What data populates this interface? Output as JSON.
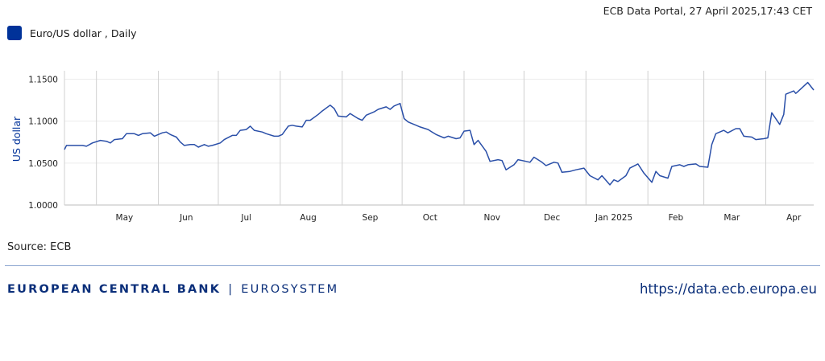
{
  "header": {
    "meta": "ECB Data Portal, 27 April 2025,17:43 CET"
  },
  "legend": {
    "label": "Euro/US dollar , Daily",
    "color": "#003299"
  },
  "source": "Source: ECB",
  "footer": {
    "brand_main": "EUROPEAN CENTRAL BANK",
    "brand_separator": "|",
    "brand_sub": "EUROSYSTEM",
    "url": "https://data.ecb.europa.eu"
  },
  "chart_data": {
    "type": "line",
    "title": "",
    "xlabel": "",
    "ylabel": "US dollar",
    "x_range": [
      "2024-04-15",
      "2025-04-25"
    ],
    "ylim": [
      1.0,
      1.16
    ],
    "yticks": [
      1.0,
      1.05,
      1.1,
      1.15
    ],
    "ytick_labels": [
      "1.0000",
      "1.0500",
      "1.1000",
      "1.1500"
    ],
    "xtick_labels": [
      "May",
      "Jun",
      "Jul",
      "Aug",
      "Sep",
      "Oct",
      "Nov",
      "Dec",
      "Jan 2025",
      "Feb",
      "Mar",
      "Apr"
    ],
    "xtick_dates": [
      "2024-05-15",
      "2024-06-15",
      "2024-07-15",
      "2024-08-15",
      "2024-09-15",
      "2024-10-15",
      "2024-11-15",
      "2024-12-15",
      "2025-01-15",
      "2025-02-15",
      "2025-03-15",
      "2025-04-15"
    ],
    "grid_dates": [
      "2024-04-15",
      "2024-05-01",
      "2024-06-01",
      "2024-07-01",
      "2024-08-01",
      "2024-09-01",
      "2024-10-01",
      "2024-11-01",
      "2024-12-01",
      "2025-01-01",
      "2025-02-01",
      "2025-03-01",
      "2025-04-01"
    ],
    "grid": true,
    "series": [
      {
        "name": "Euro/US dollar , Daily",
        "color": "#2a4fa8",
        "points": [
          [
            "2024-04-15",
            1.066
          ],
          [
            "2024-04-16",
            1.071
          ],
          [
            "2024-04-19",
            1.071
          ],
          [
            "2024-04-22",
            1.071
          ],
          [
            "2024-04-24",
            1.071
          ],
          [
            "2024-04-26",
            1.07
          ],
          [
            "2024-04-29",
            1.074
          ],
          [
            "2024-05-03",
            1.077
          ],
          [
            "2024-05-06",
            1.076
          ],
          [
            "2024-05-08",
            1.074
          ],
          [
            "2024-05-10",
            1.078
          ],
          [
            "2024-05-14",
            1.079
          ],
          [
            "2024-05-16",
            1.085
          ],
          [
            "2024-05-20",
            1.085
          ],
          [
            "2024-05-22",
            1.083
          ],
          [
            "2024-05-24",
            1.085
          ],
          [
            "2024-05-28",
            1.086
          ],
          [
            "2024-05-30",
            1.082
          ],
          [
            "2024-06-03",
            1.086
          ],
          [
            "2024-06-05",
            1.087
          ],
          [
            "2024-06-07",
            1.084
          ],
          [
            "2024-06-10",
            1.081
          ],
          [
            "2024-06-12",
            1.075
          ],
          [
            "2024-06-14",
            1.071
          ],
          [
            "2024-06-17",
            1.072
          ],
          [
            "2024-06-19",
            1.072
          ],
          [
            "2024-06-21",
            1.069
          ],
          [
            "2024-06-24",
            1.072
          ],
          [
            "2024-06-26",
            1.07
          ],
          [
            "2024-06-28",
            1.071
          ],
          [
            "2024-07-02",
            1.074
          ],
          [
            "2024-07-04",
            1.078
          ],
          [
            "2024-07-08",
            1.083
          ],
          [
            "2024-07-10",
            1.083
          ],
          [
            "2024-07-12",
            1.089
          ],
          [
            "2024-07-15",
            1.09
          ],
          [
            "2024-07-17",
            1.094
          ],
          [
            "2024-07-19",
            1.089
          ],
          [
            "2024-07-23",
            1.087
          ],
          [
            "2024-07-25",
            1.085
          ],
          [
            "2024-07-29",
            1.082
          ],
          [
            "2024-07-31",
            1.082
          ],
          [
            "2024-08-02",
            1.084
          ],
          [
            "2024-08-05",
            1.094
          ],
          [
            "2024-08-07",
            1.095
          ],
          [
            "2024-08-09",
            1.094
          ],
          [
            "2024-08-12",
            1.093
          ],
          [
            "2024-08-14",
            1.101
          ],
          [
            "2024-08-16",
            1.101
          ],
          [
            "2024-08-20",
            1.108
          ],
          [
            "2024-08-22",
            1.112
          ],
          [
            "2024-08-26",
            1.119
          ],
          [
            "2024-08-28",
            1.115
          ],
          [
            "2024-08-30",
            1.106
          ],
          [
            "2024-09-03",
            1.105
          ],
          [
            "2024-09-05",
            1.109
          ],
          [
            "2024-09-09",
            1.103
          ],
          [
            "2024-09-11",
            1.101
          ],
          [
            "2024-09-13",
            1.107
          ],
          [
            "2024-09-17",
            1.111
          ],
          [
            "2024-09-19",
            1.114
          ],
          [
            "2024-09-23",
            1.117
          ],
          [
            "2024-09-25",
            1.114
          ],
          [
            "2024-09-27",
            1.118
          ],
          [
            "2024-09-30",
            1.121
          ],
          [
            "2024-10-02",
            1.103
          ],
          [
            "2024-10-04",
            1.099
          ],
          [
            "2024-10-08",
            1.095
          ],
          [
            "2024-10-10",
            1.093
          ],
          [
            "2024-10-14",
            1.09
          ],
          [
            "2024-10-16",
            1.087
          ],
          [
            "2024-10-18",
            1.084
          ],
          [
            "2024-10-22",
            1.08
          ],
          [
            "2024-10-24",
            1.082
          ],
          [
            "2024-10-28",
            1.079
          ],
          [
            "2024-10-30",
            1.08
          ],
          [
            "2024-11-01",
            1.088
          ],
          [
            "2024-11-04",
            1.089
          ],
          [
            "2024-11-06",
            1.072
          ],
          [
            "2024-11-08",
            1.077
          ],
          [
            "2024-11-12",
            1.064
          ],
          [
            "2024-11-14",
            1.052
          ],
          [
            "2024-11-18",
            1.054
          ],
          [
            "2024-11-20",
            1.053
          ],
          [
            "2024-11-22",
            1.042
          ],
          [
            "2024-11-26",
            1.048
          ],
          [
            "2024-11-28",
            1.054
          ],
          [
            "2024-12-02",
            1.052
          ],
          [
            "2024-12-04",
            1.051
          ],
          [
            "2024-12-06",
            1.057
          ],
          [
            "2024-12-10",
            1.051
          ],
          [
            "2024-12-12",
            1.047
          ],
          [
            "2024-12-16",
            1.051
          ],
          [
            "2024-12-18",
            1.05
          ],
          [
            "2024-12-20",
            1.039
          ],
          [
            "2024-12-24",
            1.04
          ],
          [
            "2024-12-27",
            1.042
          ],
          [
            "2024-12-31",
            1.044
          ],
          [
            "2025-01-03",
            1.035
          ],
          [
            "2025-01-07",
            1.03
          ],
          [
            "2025-01-09",
            1.035
          ],
          [
            "2025-01-13",
            1.024
          ],
          [
            "2025-01-15",
            1.03
          ],
          [
            "2025-01-17",
            1.028
          ],
          [
            "2025-01-21",
            1.035
          ],
          [
            "2025-01-23",
            1.044
          ],
          [
            "2025-01-27",
            1.049
          ],
          [
            "2025-01-30",
            1.038
          ],
          [
            "2025-02-03",
            1.027
          ],
          [
            "2025-02-05",
            1.04
          ],
          [
            "2025-02-07",
            1.035
          ],
          [
            "2025-02-11",
            1.032
          ],
          [
            "2025-02-13",
            1.046
          ],
          [
            "2025-02-17",
            1.048
          ],
          [
            "2025-02-19",
            1.046
          ],
          [
            "2025-02-21",
            1.048
          ],
          [
            "2025-02-25",
            1.049
          ],
          [
            "2025-02-27",
            1.046
          ],
          [
            "2025-03-03",
            1.045
          ],
          [
            "2025-03-05",
            1.072
          ],
          [
            "2025-03-07",
            1.085
          ],
          [
            "2025-03-11",
            1.089
          ],
          [
            "2025-03-13",
            1.086
          ],
          [
            "2025-03-17",
            1.091
          ],
          [
            "2025-03-19",
            1.091
          ],
          [
            "2025-03-21",
            1.082
          ],
          [
            "2025-03-25",
            1.081
          ],
          [
            "2025-03-27",
            1.078
          ],
          [
            "2025-03-31",
            1.079
          ],
          [
            "2025-04-02",
            1.08
          ],
          [
            "2025-04-04",
            1.11
          ],
          [
            "2025-04-08",
            1.096
          ],
          [
            "2025-04-10",
            1.108
          ],
          [
            "2025-04-11",
            1.132
          ],
          [
            "2025-04-15",
            1.136
          ],
          [
            "2025-04-16",
            1.133
          ],
          [
            "2025-04-17",
            1.135
          ],
          [
            "2025-04-22",
            1.146
          ],
          [
            "2025-04-25",
            1.137
          ]
        ]
      }
    ]
  }
}
